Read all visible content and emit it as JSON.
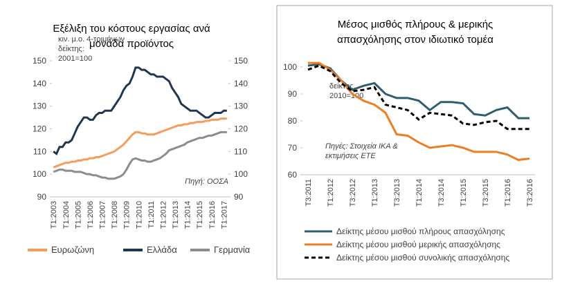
{
  "chart_data": [
    {
      "type": "line",
      "title": [
        "Εξέλιξη του κόστους εργασίας ανά",
        "μονάδα προϊόντος"
      ],
      "annotations": [
        [
          "κιν. μ.ο. 4-τριμήνων",
          "δείκτης:",
          "2001=100"
        ],
        [
          "Πηγή: ΟΟΣΑ"
        ]
      ],
      "categories": [
        "Τ1:2003",
        null,
        null,
        null,
        "Τ1:2004",
        null,
        null,
        null,
        "Τ1:2005",
        null,
        null,
        null,
        "Τ1:2006",
        null,
        null,
        null,
        "Τ1:2007",
        null,
        null,
        null,
        "Τ1:2008",
        null,
        null,
        null,
        "Τ1:2009",
        null,
        null,
        null,
        "Τ1:2010",
        null,
        null,
        null,
        "Τ1:2011",
        null,
        null,
        null,
        "Τ1:2012",
        null,
        null,
        null,
        "Τ1:2013",
        null,
        null,
        null,
        "Τ1:2014",
        null,
        null,
        null,
        "Τ1:2015",
        null,
        null,
        null,
        "Τ1:2016",
        null,
        null,
        null,
        "Τ1:2017",
        null
      ],
      "ylim": [
        90,
        150
      ],
      "yticks": [
        90,
        100,
        110,
        120,
        130,
        140,
        150
      ],
      "y2lim": [
        90,
        150
      ],
      "y2ticks": [
        90,
        100,
        110,
        120,
        130,
        140,
        150
      ],
      "legend": "bottom",
      "series": [
        {
          "name": "Ευρωζώνη",
          "color": "#f79b5a",
          "values": [
            103,
            103.5,
            104,
            104.5,
            105,
            105,
            105.5,
            105.5,
            106,
            106,
            106.5,
            106.5,
            107,
            107,
            107.5,
            107.5,
            108,
            108.5,
            109,
            109.5,
            110,
            111,
            112,
            113,
            114.5,
            116,
            117.5,
            118.5,
            118.5,
            118,
            118,
            117.5,
            117.5,
            117.5,
            118,
            118.5,
            119,
            119.5,
            120,
            120.5,
            121,
            121.5,
            121.5,
            122,
            122,
            122.5,
            122.5,
            123,
            123,
            123,
            123.5,
            123.5,
            124,
            124,
            124,
            124.5,
            124.5,
            124.5
          ]
        },
        {
          "name": "Ελλάδα",
          "color": "#1f3550",
          "values": [
            110,
            109,
            112,
            112,
            114,
            114,
            115,
            118,
            121,
            123,
            125,
            125,
            124,
            124,
            126,
            127,
            127,
            128,
            128,
            128,
            130,
            132,
            134,
            137,
            139,
            140,
            143,
            147,
            147,
            146,
            146,
            145,
            144,
            144,
            143,
            143,
            143,
            142,
            141,
            138,
            136,
            134,
            131,
            130,
            129,
            128,
            128,
            128,
            127,
            126,
            125,
            125,
            126,
            127,
            127,
            127,
            128,
            128
          ]
        },
        {
          "name": "Γερμανία",
          "color": "#8c8c8c",
          "values": [
            101,
            101.5,
            102,
            102,
            101.5,
            101.5,
            101.5,
            101,
            101,
            101,
            100.5,
            100,
            100,
            99.5,
            99.5,
            99,
            98.5,
            98.5,
            98,
            98,
            98,
            98.5,
            99,
            100,
            102,
            104.5,
            106.5,
            107,
            106.5,
            106,
            106,
            105.5,
            105.5,
            106,
            106.5,
            107,
            108,
            109,
            110.5,
            111,
            111.5,
            112,
            112.5,
            113,
            114,
            114.5,
            115,
            115.5,
            116,
            116,
            116.5,
            117,
            117,
            117.5,
            118,
            118.5,
            118.5,
            118.5
          ]
        }
      ]
    },
    {
      "type": "line",
      "title": [
        "Μέσος μισθός πλήρους & μερικής",
        "απασχόλησης στον ιδιωτικό τομέα"
      ],
      "annotations": [
        [
          "δείκτης,",
          "2010=100"
        ],
        [
          "Πηγές: Στοιχεία ΙΚΑ &",
          "εκτιμήσεις ΕΤΕ"
        ]
      ],
      "categories": [
        "Τ3:2011",
        null,
        "Τ1:2012",
        null,
        "Τ3:2012",
        null,
        "Τ1:2013",
        null,
        "Τ3:2013",
        null,
        "Τ1:2014",
        null,
        "Τ3:2014",
        null,
        "Τ1:2015",
        null,
        "Τ3:2015",
        null,
        "Τ1:2016",
        null,
        "Τ3:2016"
      ],
      "ylim": [
        60,
        100
      ],
      "yticks": [
        60,
        70,
        80,
        90,
        100
      ],
      "legend": "bottom-list",
      "series": [
        {
          "name": "Δείκτης μέσου μισθού πλήρους απασχόλησης",
          "color": "#2e5e6c",
          "values": [
            100.5,
            101,
            99.5,
            95,
            91.5,
            93,
            94,
            90,
            88.5,
            88.5,
            87.5,
            84,
            87,
            87,
            86.5,
            82.5,
            82,
            84,
            85,
            81,
            81
          ]
        },
        {
          "name": "Δείκτης μέσου μισθού μερικής απασχόλησης",
          "color": "#ee7d22",
          "values": [
            101.5,
            101.5,
            99,
            95,
            90,
            87.5,
            86,
            83,
            75,
            74.5,
            72,
            70,
            70.5,
            71,
            70,
            68.5,
            68.5,
            68.5,
            67.5,
            65.5,
            66
          ]
        },
        {
          "name": "Δείκτης μέσου μισθού συνολικής απασχόλησης",
          "color": "#000000",
          "line_style": "dashed",
          "values": [
            99,
            100.5,
            98.5,
            94,
            91,
            91.5,
            92.5,
            86,
            85,
            84,
            80.5,
            83,
            82.5,
            82,
            79,
            78.5,
            79.5,
            80,
            77,
            77,
            77
          ]
        }
      ]
    }
  ]
}
